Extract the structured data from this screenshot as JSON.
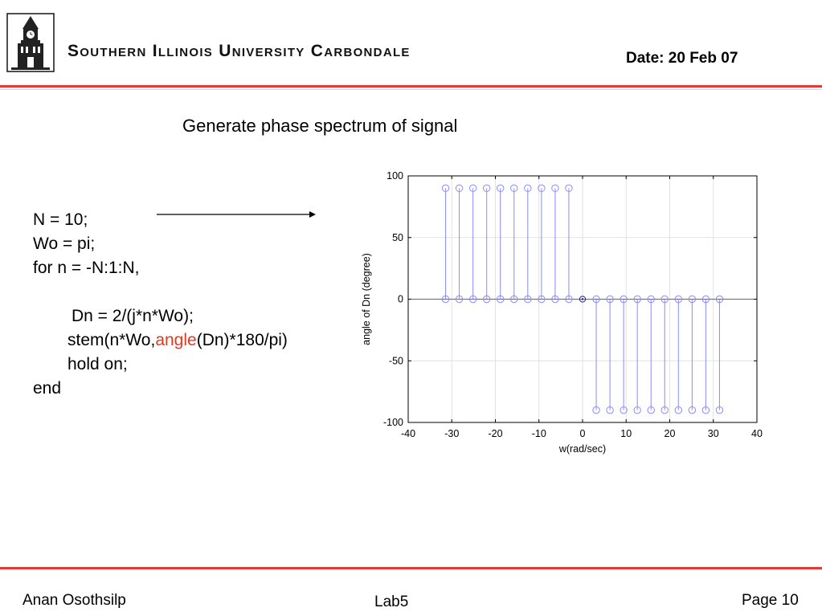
{
  "header": {
    "university_name": "Southern Illinois University Carbondale",
    "date": "Date: 20 Feb 07"
  },
  "slide": {
    "title": "Generate phase spectrum of signal",
    "code_lines": [
      {
        "indent": 0,
        "text": "N = 10;"
      },
      {
        "indent": 0,
        "text": "Wo = pi;"
      },
      {
        "indent": 0,
        "text": "for n = -N:1:N,"
      },
      {
        "indent": 0,
        "text": ""
      },
      {
        "indent": 2,
        "text": "Dn = 2/(j*n*Wo);"
      },
      {
        "indent": 1,
        "text": "stem(n*Wo,",
        "highlight": "angle",
        "rest": "(Dn)*180/pi)"
      },
      {
        "indent": 1,
        "text": "hold on;"
      },
      {
        "indent": 0,
        "text": "end"
      }
    ]
  },
  "footer": {
    "author": "Anan Osothsilp",
    "lab": "Lab5",
    "page": "Page 10"
  },
  "colors": {
    "accent_rule": "#e53935",
    "highlight_text": "#e5361f",
    "stem_color": "#8a8aff",
    "origin_marker": "#1a1aa0"
  },
  "chart_data": {
    "type": "scatter",
    "style": "stem",
    "xlabel": "w(rad/sec)",
    "ylabel": "angle of Dn (degree)",
    "xlim": [
      -40,
      40
    ],
    "ylim": [
      -100,
      100
    ],
    "xticks": [
      -40,
      -30,
      -20,
      -10,
      0,
      10,
      20,
      30,
      40
    ],
    "yticks": [
      -100,
      -50,
      0,
      50,
      100
    ],
    "grid": true,
    "series": [
      {
        "x": [
          -31.4159,
          -28.2743,
          -25.1327,
          -21.9911,
          -18.8496,
          -15.708,
          -12.5664,
          -9.4248,
          -6.2832,
          -3.1416,
          0,
          3.1416,
          6.2832,
          9.4248,
          12.5664,
          15.708,
          18.8496,
          21.9911,
          25.1327,
          28.2743,
          31.4159
        ],
        "y": [
          90,
          90,
          90,
          90,
          90,
          90,
          90,
          90,
          90,
          90,
          0,
          -90,
          -90,
          -90,
          -90,
          -90,
          -90,
          -90,
          -90,
          -90,
          -90
        ]
      }
    ]
  }
}
